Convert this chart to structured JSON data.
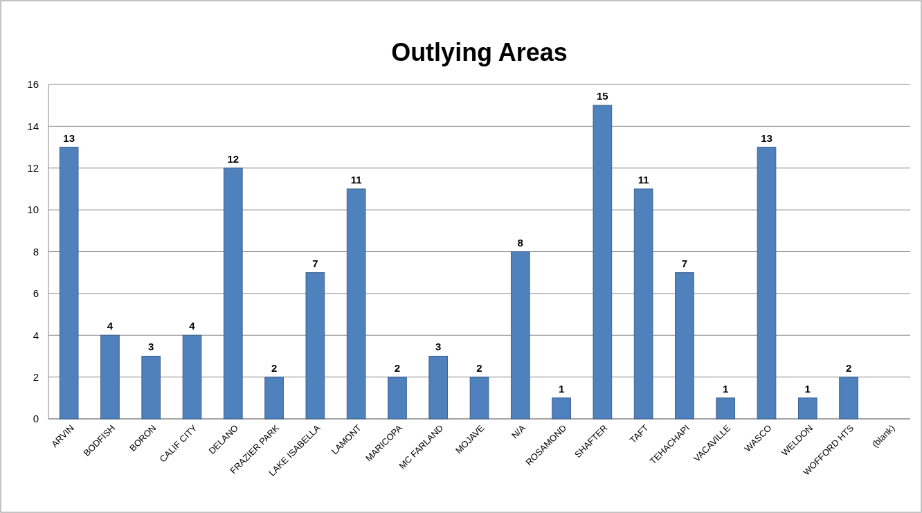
{
  "chart_data": {
    "type": "bar",
    "title": "Outlying Areas",
    "categories": [
      "ARVIN",
      "BODFISH",
      "BORON",
      "CALIF CITY",
      "DELANO",
      "FRAZIER PARK",
      "LAKE ISABELLA",
      "LAMONT",
      "MARICOPA",
      "MC FARLAND",
      "MOJAVE",
      "N/A",
      "ROSAMOND",
      "SHAFTER",
      "TAFT",
      "TEHACHAPI",
      "VACAVILLE",
      "WASCO",
      "WELDON",
      "WOFFORD HTS",
      "(blank)"
    ],
    "values": [
      13,
      4,
      3,
      4,
      12,
      2,
      7,
      11,
      2,
      3,
      2,
      8,
      1,
      15,
      11,
      7,
      1,
      13,
      1,
      2,
      null
    ],
    "color": "#4f81bd",
    "ylim": [
      0,
      16
    ],
    "yticks": [
      0,
      2,
      4,
      6,
      8,
      10,
      12,
      14,
      16
    ],
    "grid": "y",
    "data_labels": true
  }
}
